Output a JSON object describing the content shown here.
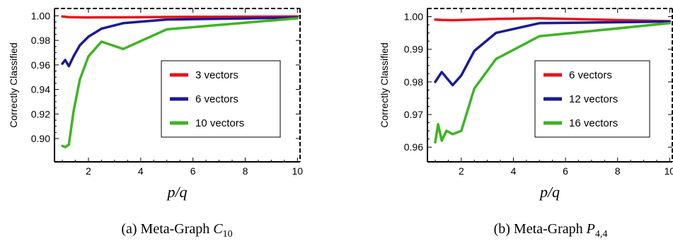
{
  "chart_data": [
    {
      "type": "line",
      "xlabel": "p/q",
      "ylabel": "Correctly Classified",
      "xlim": [
        0.7,
        10.1
      ],
      "ylim": [
        0.881,
        1.006
      ],
      "xticks": [
        2,
        4,
        6,
        8,
        10
      ],
      "xtick_labels": [
        "2",
        "4",
        "6",
        "8",
        "10"
      ],
      "yticks": [
        0.9,
        0.92,
        0.94,
        0.96,
        0.98,
        1.0
      ],
      "ytick_labels": [
        "0.90",
        "0.92",
        "0.94",
        "0.96",
        "0.98",
        "1.00"
      ],
      "legend_position": "center-right",
      "caption": {
        "prefix": "(a) Meta-Graph ",
        "math": "C",
        "sub": "10"
      },
      "series": [
        {
          "name": "3 vectors",
          "color": "#e8141c",
          "x": [
            1.0,
            1.25,
            1.67,
            2.0,
            2.5,
            3.33,
            5.0,
            10.0
          ],
          "y": [
            0.9995,
            0.999,
            0.9988,
            0.9987,
            0.9988,
            0.9988,
            0.9991,
            0.9995
          ]
        },
        {
          "name": "6 vectors",
          "color": "#1a1a99",
          "x": [
            1.0,
            1.11,
            1.25,
            1.43,
            1.67,
            2.0,
            2.5,
            3.33,
            5.0,
            10.0
          ],
          "y": [
            0.961,
            0.964,
            0.959,
            0.967,
            0.976,
            0.983,
            0.9895,
            0.994,
            0.997,
            0.9985
          ]
        },
        {
          "name": "10 vectors",
          "color": "#3cb521",
          "x": [
            1.0,
            1.11,
            1.25,
            1.43,
            1.67,
            2.0,
            2.5,
            3.33,
            5.0,
            10.0
          ],
          "y": [
            0.894,
            0.893,
            0.895,
            0.922,
            0.948,
            0.967,
            0.979,
            0.973,
            0.989,
            0.998
          ]
        }
      ]
    },
    {
      "type": "line",
      "xlabel": "p/q",
      "ylabel": "Correctly Classified",
      "xlim": [
        0.7,
        10.1
      ],
      "ylim": [
        0.9555,
        1.0025
      ],
      "xticks": [
        2,
        4,
        6,
        8,
        10
      ],
      "xtick_labels": [
        "2",
        "4",
        "6",
        "8",
        "10"
      ],
      "yticks": [
        0.96,
        0.97,
        0.98,
        0.99,
        1.0
      ],
      "ytick_labels": [
        "0.96",
        "0.97",
        "0.98",
        "0.99",
        "1.00"
      ],
      "legend_position": "center-right",
      "caption": {
        "prefix": "(b) Meta-Graph ",
        "math": "P",
        "sub": "4,4"
      },
      "series": [
        {
          "name": "6 vectors",
          "color": "#e8141c",
          "x": [
            1.0,
            1.25,
            1.67,
            2.0,
            2.5,
            3.33,
            5.0,
            10.0
          ],
          "y": [
            0.9991,
            0.999,
            0.9989,
            0.999,
            0.9991,
            0.9993,
            0.9995,
            0.9986
          ]
        },
        {
          "name": "12 vectors",
          "color": "#1a1a99",
          "x": [
            1.0,
            1.25,
            1.67,
            2.0,
            2.5,
            3.33,
            5.0,
            10.0
          ],
          "y": [
            0.98,
            0.983,
            0.979,
            0.982,
            0.9895,
            0.995,
            0.998,
            0.9985
          ]
        },
        {
          "name": "16 vectors",
          "color": "#3cb521",
          "x": [
            1.0,
            1.11,
            1.25,
            1.43,
            1.67,
            2.0,
            2.5,
            3.33,
            5.0,
            10.0
          ],
          "y": [
            0.9615,
            0.967,
            0.962,
            0.965,
            0.964,
            0.965,
            0.978,
            0.987,
            0.994,
            0.998
          ]
        }
      ]
    }
  ]
}
